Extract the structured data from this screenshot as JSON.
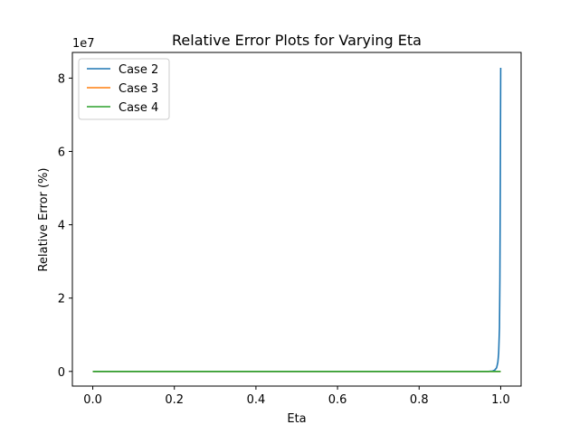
{
  "chart_data": {
    "type": "line",
    "title": "Relative Error Plots for Varying Eta",
    "xlabel": "Eta",
    "ylabel": "Relative Error (%)",
    "y_offset_text": "1e7",
    "xlim": [
      -0.05,
      1.05
    ],
    "ylim": [
      -0.4,
      8.7
    ],
    "y_scale_factor": 10000000,
    "xticks": [
      0.0,
      0.2,
      0.4,
      0.6,
      0.8,
      1.0
    ],
    "xtick_labels": [
      "0.0",
      "0.2",
      "0.4",
      "0.6",
      "0.8",
      "1.0"
    ],
    "yticks": [
      0,
      2,
      4,
      6,
      8
    ],
    "ytick_labels": [
      "0",
      "2",
      "4",
      "6",
      "8"
    ],
    "legend_position": "top-left",
    "grid": false,
    "series": [
      {
        "name": "Case 2",
        "color": "#1f77b4",
        "x": [
          0.0,
          0.5,
          0.9,
          0.95,
          0.97,
          0.98,
          0.985,
          0.99,
          0.993,
          0.995,
          0.997,
          0.998,
          0.999,
          1.0
        ],
        "y": [
          0,
          0,
          0,
          0,
          0,
          0.01,
          0.03,
          0.1,
          0.25,
          0.5,
          1.2,
          2.5,
          5.0,
          8.28
        ]
      },
      {
        "name": "Case 3",
        "color": "#ff7f0e",
        "x": [
          0.0,
          0.5,
          1.0
        ],
        "y": [
          0,
          0,
          0
        ]
      },
      {
        "name": "Case 4",
        "color": "#2ca02c",
        "x": [
          0.0,
          0.5,
          1.0
        ],
        "y": [
          0,
          0,
          0
        ]
      }
    ]
  }
}
